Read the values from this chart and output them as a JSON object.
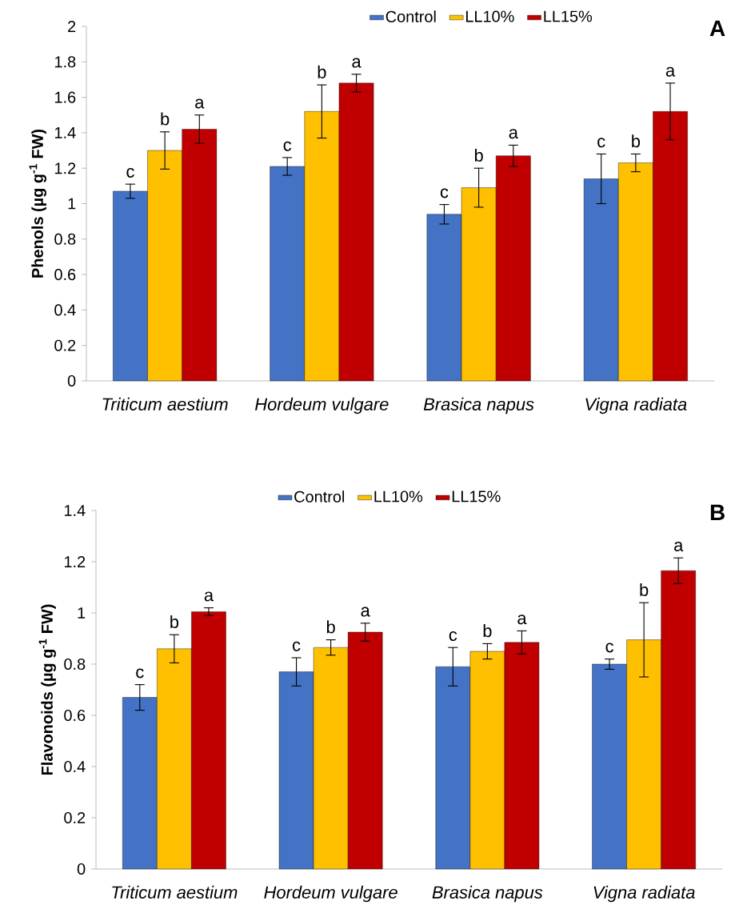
{
  "chart_data": [
    {
      "type": "bar",
      "title": "A",
      "ylabel": "Phenols (µg g$^{-1}$ FW)",
      "categories": [
        "Triticum aestium",
        "Hordeum vulgare",
        "Brasica napus",
        "Vigna radiata"
      ],
      "series": [
        {
          "name": "Control",
          "color": "#4472c4",
          "values": [
            1.07,
            1.21,
            0.94,
            1.14
          ],
          "errors": [
            0.04,
            0.05,
            0.055,
            0.14
          ],
          "value_labels": [
            "c",
            "c",
            "c",
            "c"
          ]
        },
        {
          "name": "LL10%",
          "color": "#ffc000",
          "values": [
            1.3,
            1.52,
            1.09,
            1.23
          ],
          "errors": [
            0.105,
            0.15,
            0.11,
            0.05
          ],
          "value_labels": [
            "b",
            "b",
            "b",
            "b"
          ]
        },
        {
          "name": "LL15%",
          "color": "#c00000",
          "values": [
            1.42,
            1.68,
            1.27,
            1.52
          ],
          "errors": [
            0.08,
            0.05,
            0.06,
            0.16
          ],
          "value_labels": [
            "a",
            "a",
            "a",
            "a"
          ]
        }
      ],
      "ylim": [
        0,
        2
      ],
      "yticks": [
        0,
        0.2,
        0.4,
        0.6,
        0.8,
        1,
        1.2,
        1.4,
        1.6,
        1.8,
        2
      ],
      "legend": "top"
    },
    {
      "type": "bar",
      "title": "B",
      "ylabel": "Flavonoids (µg g$^{-1}$ FW)",
      "categories": [
        "Triticum aestium",
        "Hordeum vulgare",
        "Brasica napus",
        "Vigna radiata"
      ],
      "series": [
        {
          "name": "Control",
          "color": "#4472c4",
          "values": [
            0.67,
            0.77,
            0.79,
            0.8
          ],
          "errors": [
            0.05,
            0.055,
            0.075,
            0.02
          ],
          "value_labels": [
            "c",
            "c",
            "c",
            "c"
          ]
        },
        {
          "name": "LL10%",
          "color": "#ffc000",
          "values": [
            0.86,
            0.865,
            0.85,
            0.895
          ],
          "errors": [
            0.055,
            0.03,
            0.03,
            0.145
          ],
          "value_labels": [
            "b",
            "b",
            "b",
            "b"
          ]
        },
        {
          "name": "LL15%",
          "color": "#c00000",
          "values": [
            1.005,
            0.925,
            0.885,
            1.165
          ],
          "errors": [
            0.015,
            0.035,
            0.045,
            0.05
          ],
          "value_labels": [
            "a",
            "a",
            "a",
            "a"
          ]
        }
      ],
      "ylim": [
        0,
        1.4
      ],
      "yticks": [
        0,
        0.2,
        0.4,
        0.6,
        0.8,
        1,
        1.2,
        1.4
      ],
      "legend": "top"
    }
  ]
}
